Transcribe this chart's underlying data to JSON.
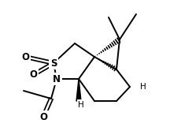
{
  "bg_color": "#ffffff",
  "line_color": "#000000",
  "line_width": 1.4,
  "fig_width": 2.16,
  "fig_height": 1.66,
  "dpi": 100,
  "xlim": [
    0,
    216
  ],
  "ylim": [
    0,
    166
  ]
}
